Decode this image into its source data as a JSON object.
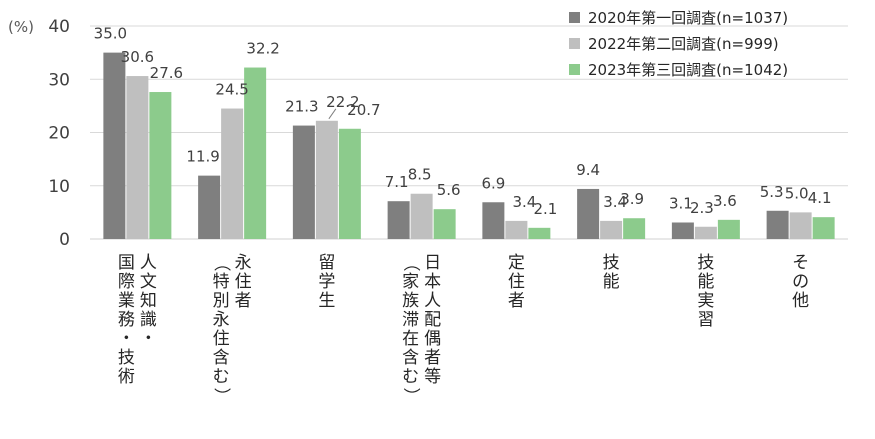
{
  "chart_data": {
    "type": "bar",
    "unit_label": "(%)",
    "ylim": [
      0,
      40
    ],
    "yticks": [
      "0",
      "10",
      "20",
      "30",
      "40"
    ],
    "grid": true,
    "legend_position": "top-right",
    "categories": [
      [
        "人文知識・",
        "国際業務・技術"
      ],
      [
        "永住者",
        "（特別永住含む）"
      ],
      [
        "留学生"
      ],
      [
        "日本人配偶者等",
        "（家族滞在含む）"
      ],
      [
        "定住者"
      ],
      [
        "技能"
      ],
      [
        "技能実習"
      ],
      [
        "その他"
      ]
    ],
    "series": [
      {
        "name": "2020年第一回調査(n=1037)",
        "color": "#7f7f7f",
        "values": [
          35.0,
          11.9,
          21.3,
          7.1,
          6.9,
          9.4,
          3.1,
          5.3
        ],
        "labels": [
          "35.0",
          "11.9",
          "21.3",
          "7.1",
          "6.9",
          "9.4",
          "3.1",
          "5.3"
        ]
      },
      {
        "name": "2022年第二回調査(n=999)",
        "color": "#bfbfbf",
        "values": [
          30.6,
          24.5,
          22.2,
          8.5,
          3.4,
          3.4,
          2.3,
          5.0
        ],
        "labels": [
          "30.6",
          "24.5",
          "22.2",
          "8.5",
          "3.4",
          "3.4",
          "2.3",
          "5.0"
        ]
      },
      {
        "name": "2023年第三回調査(n=1042)",
        "color": "#8ccb8c",
        "values": [
          27.6,
          32.2,
          20.7,
          5.6,
          2.1,
          3.9,
          3.6,
          4.1
        ],
        "labels": [
          "27.6",
          "32.2",
          "20.7",
          "5.6",
          "2.1",
          "3.9",
          "3.6",
          "4.1"
        ]
      }
    ]
  }
}
